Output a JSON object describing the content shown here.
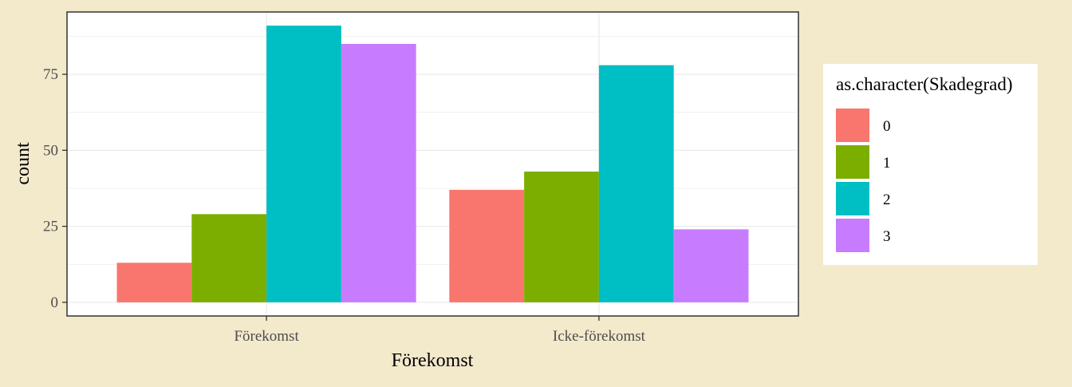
{
  "chart_data": {
    "type": "bar",
    "categories": [
      "Förekomst",
      "Icke-förekomst"
    ],
    "series": [
      {
        "name": "0",
        "values": [
          13,
          37
        ],
        "color": "#F8766D"
      },
      {
        "name": "1",
        "values": [
          29,
          43
        ],
        "color": "#7CAE00"
      },
      {
        "name": "2",
        "values": [
          91,
          78
        ],
        "color": "#00BFC4"
      },
      {
        "name": "3",
        "values": [
          85,
          24
        ],
        "color": "#C77CFF"
      }
    ],
    "xlabel": "Förekomst",
    "ylabel": "count",
    "ylim": [
      -4.5,
      95.5
    ],
    "yticks": [
      0,
      25,
      50,
      75
    ],
    "grid": true,
    "legend": {
      "title": "as.character(Skadegrad)",
      "position": "right"
    },
    "background_color": "#F3E9CB",
    "panel_color": "#FFFFFF",
    "grid_color": "#EBEBEB"
  }
}
